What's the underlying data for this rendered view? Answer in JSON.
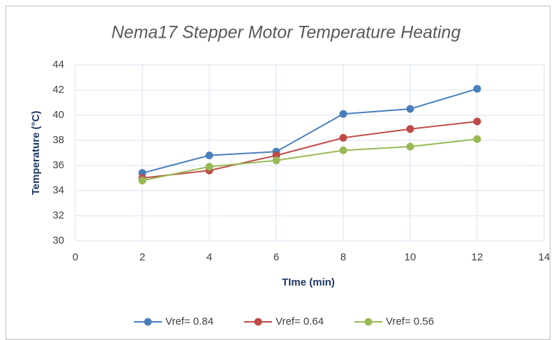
{
  "chart_data": {
    "type": "line",
    "title": "Nema17 Stepper Motor Temperature Heating",
    "x_label": "TIme (min)",
    "y_label": "Temperature (°C)",
    "x": [
      2,
      4,
      6,
      8,
      10,
      12
    ],
    "series": [
      {
        "name": "Vref= 0.84",
        "color": "#4a7ebb",
        "values": [
          35.4,
          36.8,
          37.1,
          40.1,
          40.5,
          42.1
        ]
      },
      {
        "name": "Vref= 0.64",
        "color": "#be4b48",
        "values": [
          35.0,
          35.6,
          36.8,
          38.2,
          38.9,
          39.5
        ]
      },
      {
        "name": "Vref= 0.56",
        "color": "#98b954",
        "values": [
          34.8,
          35.9,
          36.4,
          37.2,
          37.5,
          38.1
        ]
      }
    ],
    "xlim": [
      0,
      14
    ],
    "xticks": [
      0,
      2,
      4,
      6,
      8,
      10,
      12,
      14
    ],
    "ylim": [
      30,
      44
    ],
    "yticks": [
      30,
      32,
      34,
      36,
      38,
      40,
      42,
      44
    ],
    "grid": true,
    "legend": "bottom"
  }
}
